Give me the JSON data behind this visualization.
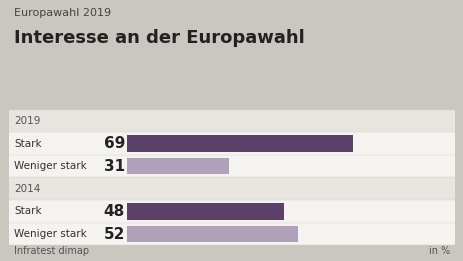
{
  "supertitle": "Europawahl 2019",
  "title": "Interesse an der Europawahl",
  "source": "Infratest dimap",
  "unit": "in %",
  "groups": [
    {
      "label": "2019",
      "bars": [
        {
          "category": "Stark",
          "value": 69,
          "color": "#5b4068"
        },
        {
          "category": "Weniger stark",
          "value": 31,
          "color": "#b0a0ba"
        }
      ]
    },
    {
      "label": "2014",
      "bars": [
        {
          "category": "Stark",
          "value": 48,
          "color": "#5b4068"
        },
        {
          "category": "Weniger stark",
          "value": 52,
          "color": "#b0a0ba"
        }
      ]
    }
  ],
  "xlim": [
    0,
    100
  ],
  "bg_color": "#cac6c0",
  "chart_bg": "#f0eeeb",
  "header_bg": "#e8e5e1",
  "bar_row_bg": "#f5f3f0",
  "bar_height": 0.72,
  "value_fontsize": 11,
  "category_fontsize": 7.5,
  "group_label_fontsize": 7.5,
  "supertitle_fontsize": 8,
  "title_fontsize": 13,
  "source_fontsize": 7
}
